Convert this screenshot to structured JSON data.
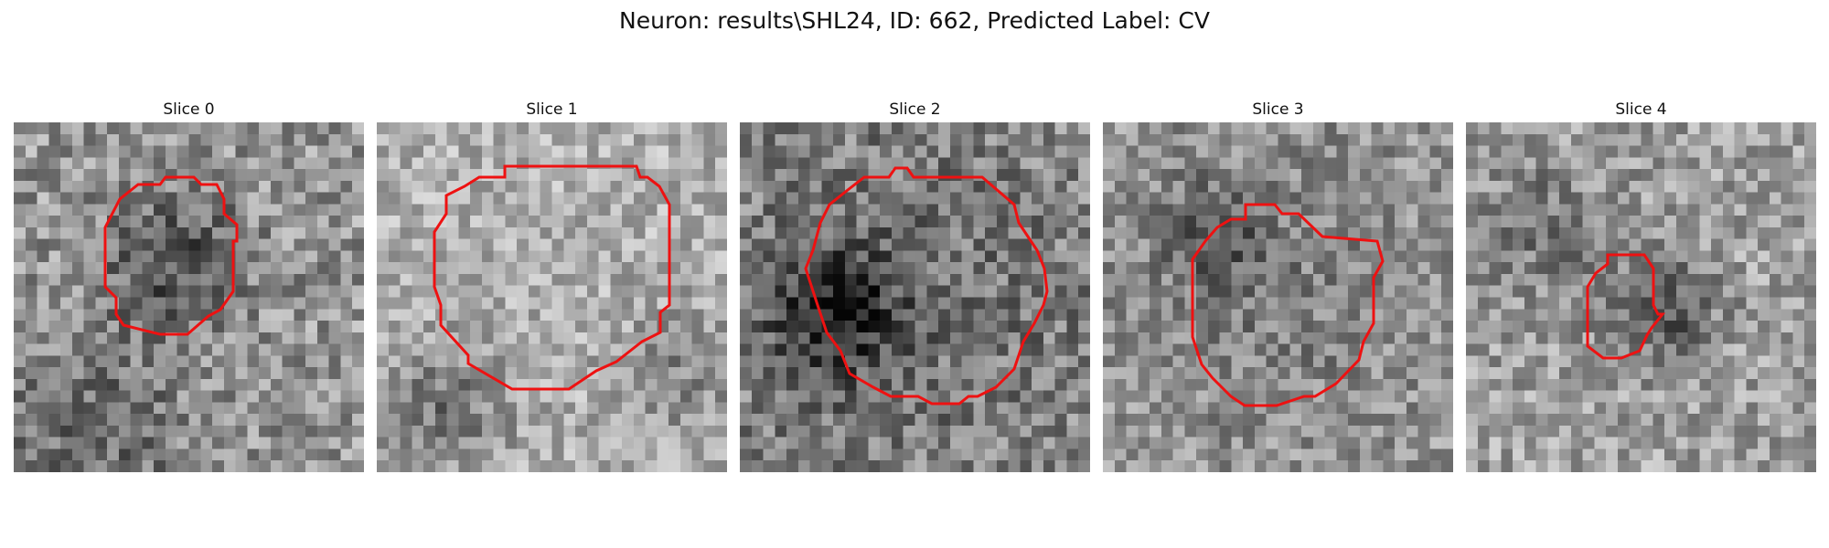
{
  "figure": {
    "title": "Neuron: results\\SHL24, ID: 662, Predicted Label: CV"
  },
  "colors": {
    "contour": "#ee1111"
  },
  "panels": [
    {
      "title": "Slice 0"
    },
    {
      "title": "Slice 1"
    },
    {
      "title": "Slice 2"
    },
    {
      "title": "Slice 3"
    },
    {
      "title": "Slice 4"
    }
  ]
}
